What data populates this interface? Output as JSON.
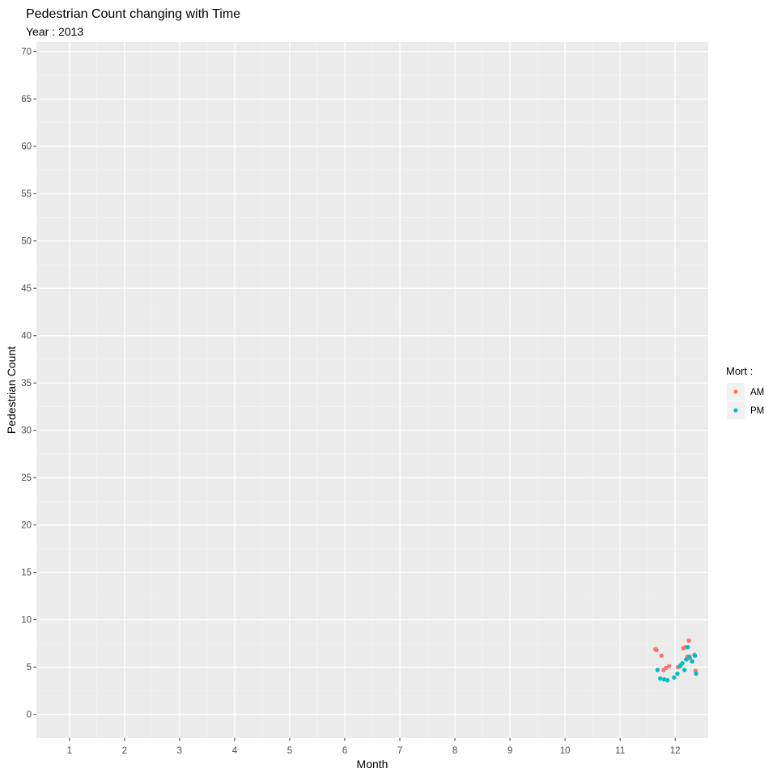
{
  "chart_data": {
    "type": "scatter",
    "title": "Pedestrian Count changing with Time",
    "subtitle": "Year : 2013",
    "xlabel": "Month",
    "ylabel": "Pedestrian Count",
    "xlim": [
      0.4,
      12.6
    ],
    "ylim": [
      -2.5,
      71
    ],
    "x_ticks": [
      1,
      2,
      3,
      4,
      5,
      6,
      7,
      8,
      9,
      10,
      11,
      12
    ],
    "y_ticks": [
      0,
      5,
      10,
      15,
      20,
      25,
      30,
      35,
      40,
      45,
      50,
      55,
      60,
      65,
      70
    ],
    "grid": true,
    "legend": {
      "title": "Mort :",
      "position": "right"
    },
    "series": [
      {
        "name": "AM",
        "color": "#F8766D",
        "points": [
          {
            "x": 11.64,
            "y": 6.9
          },
          {
            "x": 11.66,
            "y": 6.8
          },
          {
            "x": 11.75,
            "y": 6.2
          },
          {
            "x": 11.79,
            "y": 4.7
          },
          {
            "x": 11.83,
            "y": 4.9
          },
          {
            "x": 11.89,
            "y": 5.1
          },
          {
            "x": 12.05,
            "y": 5.0
          },
          {
            "x": 12.1,
            "y": 5.2
          },
          {
            "x": 12.15,
            "y": 7.0
          },
          {
            "x": 12.19,
            "y": 7.1
          },
          {
            "x": 12.22,
            "y": 6.1
          },
          {
            "x": 12.25,
            "y": 7.8
          },
          {
            "x": 12.27,
            "y": 5.9
          },
          {
            "x": 12.35,
            "y": 6.3
          },
          {
            "x": 12.37,
            "y": 4.6
          }
        ]
      },
      {
        "name": "PM",
        "color": "#00BFC4",
        "points": [
          {
            "x": 11.68,
            "y": 4.7
          },
          {
            "x": 11.73,
            "y": 3.8
          },
          {
            "x": 11.8,
            "y": 3.7
          },
          {
            "x": 11.86,
            "y": 3.6
          },
          {
            "x": 11.98,
            "y": 3.9
          },
          {
            "x": 12.04,
            "y": 4.3
          },
          {
            "x": 12.09,
            "y": 5.1
          },
          {
            "x": 12.13,
            "y": 5.4
          },
          {
            "x": 12.17,
            "y": 4.7
          },
          {
            "x": 12.2,
            "y": 5.8
          },
          {
            "x": 12.23,
            "y": 7.1
          },
          {
            "x": 12.26,
            "y": 6.1
          },
          {
            "x": 12.31,
            "y": 5.6
          },
          {
            "x": 12.36,
            "y": 6.2
          },
          {
            "x": 12.38,
            "y": 4.3
          }
        ]
      }
    ]
  }
}
